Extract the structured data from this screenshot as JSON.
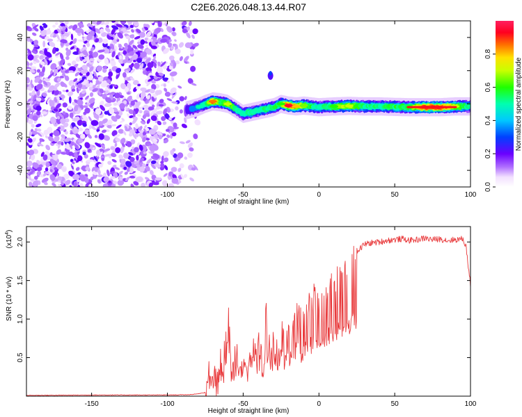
{
  "title": "C2E6.2026.048.13.44.R07",
  "chart_data": [
    {
      "type": "heatmap",
      "xlabel": "Height of straight line (km)",
      "ylabel": "Frequency (Hz)",
      "xlim": [
        -193,
        100
      ],
      "ylim": [
        -50,
        50
      ],
      "xticks": [
        -150,
        -100,
        -50,
        0,
        50,
        100
      ],
      "yticks": [
        -40,
        -20,
        0,
        20,
        40
      ],
      "xtick_labels": [
        "-150",
        "-100",
        "-50",
        "0",
        "50",
        "100"
      ],
      "ytick_labels": [
        "-40",
        "-20",
        "0",
        "20",
        "40"
      ],
      "noise_region_x": [
        -193,
        -80
      ],
      "signal_ridge": {
        "x": [
          -88,
          -80,
          -75,
          -70,
          -65,
          -60,
          -55,
          -50,
          -45,
          -40,
          -35,
          -30,
          -25,
          -20,
          -15,
          -10,
          -5,
          0,
          10,
          20,
          30,
          40,
          50,
          60,
          70,
          80,
          90,
          100
        ],
        "freq": [
          -4,
          -2,
          0,
          1.5,
          1,
          0,
          -3,
          -6,
          -5,
          -4,
          -3,
          -2,
          0,
          -1,
          -1.5,
          -1,
          -1.5,
          -2,
          -1.5,
          -1.2,
          -1.5,
          -1.5,
          -1.8,
          -2,
          -2,
          -2,
          -1.5,
          -1.5
        ],
        "amplitude": [
          0.15,
          0.3,
          0.45,
          0.85,
          0.55,
          0.7,
          0.5,
          0.45,
          0.5,
          0.45,
          0.55,
          0.5,
          0.6,
          0.95,
          0.8,
          0.65,
          0.55,
          0.45,
          0.6,
          0.7,
          0.55,
          0.5,
          0.55,
          0.6,
          0.9,
          0.9,
          0.7,
          0.45
        ]
      },
      "outlier_blob": {
        "x": -32,
        "freq": 17,
        "amplitude": 0.1
      },
      "colorbar": {
        "label": "Normalized spectral amplitude",
        "range": [
          0,
          1
        ],
        "ticks": [
          0.0,
          0.2,
          0.4,
          0.6,
          0.8
        ],
        "tick_labels": [
          "0.0",
          "0.2",
          "0.4",
          "0.6",
          "0.8"
        ]
      }
    },
    {
      "type": "line",
      "xlabel": "Height of straight line (km)",
      "ylabel": "SNR (10 * v/v)",
      "yscale_label": "(x10",
      "yscale_exponent": "4",
      "xlim": [
        -193,
        100
      ],
      "ylim": [
        0,
        2.2
      ],
      "xticks": [
        -150,
        -100,
        -50,
        0,
        50,
        100
      ],
      "yticks": [
        0.5,
        1.0,
        1.5,
        2.0
      ],
      "xtick_labels": [
        "-150",
        "-100",
        "-50",
        "0",
        "50",
        "100"
      ],
      "ytick_labels": [
        "0.5",
        "1.0",
        "1.5",
        "2.0"
      ],
      "series": [
        {
          "name": "SNR",
          "color": "#e8383a",
          "x": [
            -193,
            -170,
            -150,
            -130,
            -110,
            -95,
            -85,
            -80,
            -75,
            -72,
            -70,
            -67,
            -65,
            -62,
            -60,
            -58,
            -55,
            -52,
            -50,
            -47,
            -45,
            -42,
            -40,
            -37,
            -35,
            -32,
            -30,
            -27,
            -25,
            -22,
            -20,
            -18,
            -15,
            -12,
            -10,
            -7,
            -5,
            -2,
            0,
            2,
            5,
            8,
            10,
            13,
            15,
            18,
            20,
            23,
            25,
            28,
            30,
            35,
            40,
            45,
            50,
            55,
            60,
            65,
            70,
            75,
            80,
            85,
            90,
            95,
            97,
            100
          ],
          "values": [
            0.01,
            0.012,
            0.015,
            0.015,
            0.015,
            0.016,
            0.02,
            0.03,
            0.05,
            0.08,
            0.15,
            0.2,
            0.35,
            0.6,
            1.25,
            0.3,
            0.5,
            0.4,
            0.7,
            0.35,
            0.9,
            0.45,
            0.75,
            0.3,
            1.05,
            0.5,
            0.8,
            0.55,
            1.1,
            0.6,
            0.85,
            0.7,
            1.15,
            0.95,
            1.05,
            1.2,
            1.15,
            1.35,
            1.25,
            1.45,
            1.35,
            1.5,
            1.4,
            1.6,
            1.65,
            1.7,
            1.78,
            1.85,
            1.88,
            1.93,
            1.97,
            1.99,
            2.0,
            2.02,
            2.03,
            2.04,
            2.02,
            2.03,
            2.05,
            2.03,
            2.04,
            2.02,
            2.03,
            2.04,
            1.95,
            1.45
          ]
        }
      ]
    }
  ]
}
